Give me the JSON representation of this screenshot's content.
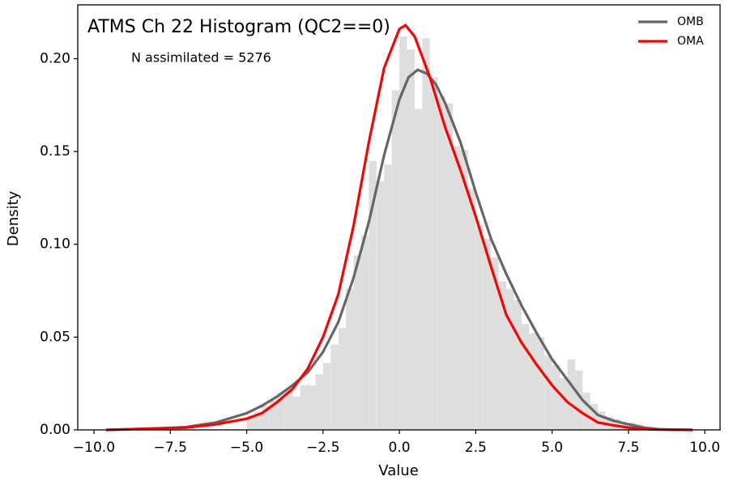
{
  "chart_data": {
    "type": "histogram",
    "title": "ATMS Ch 22 Histogram (QC2==0)",
    "annotation": "N assimilated = 5276",
    "x_label": "Value",
    "y_label": "Density",
    "hist_color": "#dedede",
    "bins": [
      -5,
      -4.75,
      -4.5,
      -4.25,
      -4,
      -3.75,
      -3.5,
      -3.25,
      -3,
      -2.75,
      -2.5,
      -2.25,
      -2,
      -1.75,
      -1.5,
      -1.25,
      -1,
      -0.75,
      -0.5,
      -0.25,
      0,
      0.25,
      0.5,
      0.75,
      1,
      1.25,
      1.5,
      1.75,
      2,
      2.25,
      2.5,
      2.75,
      3,
      3.25,
      3.5,
      3.75,
      4,
      4.25,
      4.5,
      4.75,
      5,
      5.25,
      5.5,
      5.75,
      6,
      6.25,
      6.5,
      6.75,
      7,
      7.25,
      7.5,
      7.75,
      8
    ],
    "values": [
      0.008,
      0.01,
      0.013,
      0.016,
      0.02,
      0.022,
      0.018,
      0.024,
      0.024,
      0.03,
      0.036,
      0.046,
      0.055,
      0.076,
      0.094,
      0.105,
      0.145,
      0.134,
      0.143,
      0.183,
      0.212,
      0.205,
      0.173,
      0.211,
      0.19,
      0.18,
      0.176,
      0.153,
      0.151,
      0.13,
      0.11,
      0.103,
      0.093,
      0.08,
      0.076,
      0.07,
      0.057,
      0.052,
      0.05,
      0.04,
      0.035,
      0.028,
      0.038,
      0.032,
      0.02,
      0.014,
      0.01,
      0.007,
      0.006,
      0.004,
      0.004,
      0.003
    ],
    "series": [
      {
        "name": "OMB",
        "color": "#666666",
        "x": [
          -9.6,
          -9,
          -8,
          -7,
          -6,
          -5,
          -4.5,
          -4,
          -3.5,
          -3,
          -2.5,
          -2,
          -1.5,
          -1,
          -0.5,
          0,
          0.3,
          0.6,
          0.9,
          1.2,
          1.5,
          2,
          2.5,
          3,
          3.5,
          4,
          4.5,
          5,
          5.5,
          6,
          6.5,
          7,
          7.5,
          8,
          8.5,
          9,
          9.6
        ],
        "values": [
          0,
          0.0003,
          0.0008,
          0.0015,
          0.004,
          0.009,
          0.013,
          0.018,
          0.024,
          0.031,
          0.042,
          0.058,
          0.082,
          0.112,
          0.148,
          0.178,
          0.19,
          0.194,
          0.192,
          0.186,
          0.176,
          0.155,
          0.128,
          0.103,
          0.084,
          0.067,
          0.052,
          0.038,
          0.027,
          0.016,
          0.008,
          0.005,
          0.003,
          0.0012,
          0.0004,
          0.0001,
          0
        ]
      },
      {
        "name": "OMA",
        "color": "#ff0000",
        "x": [
          -9.6,
          -9,
          -8,
          -7,
          -6,
          -5,
          -4.5,
          -4,
          -3.5,
          -3,
          -2.5,
          -2,
          -1.5,
          -1,
          -0.5,
          0,
          0.2,
          0.5,
          1,
          1.5,
          2,
          2.5,
          3,
          3.5,
          4,
          4.5,
          5,
          5.5,
          6,
          6.5,
          7,
          7.5,
          8,
          8.5,
          9,
          9.6
        ],
        "values": [
          0,
          0.0003,
          0.0008,
          0.0012,
          0.003,
          0.006,
          0.009,
          0.015,
          0.022,
          0.033,
          0.05,
          0.073,
          0.11,
          0.155,
          0.195,
          0.216,
          0.218,
          0.212,
          0.19,
          0.163,
          0.14,
          0.115,
          0.088,
          0.062,
          0.047,
          0.035,
          0.024,
          0.015,
          0.009,
          0.004,
          0.0025,
          0.0012,
          0.0005,
          0.0002,
          0.0001,
          0
        ]
      }
    ],
    "xlim": [
      -10.53,
      10.5
    ],
    "ylim": [
      0,
      0.229
    ],
    "xticks": [
      {
        "value": -10,
        "label": "−10.0"
      },
      {
        "value": -7.5,
        "label": "−7.5"
      },
      {
        "value": -5,
        "label": "−5.0"
      },
      {
        "value": -2.5,
        "label": "−2.5"
      },
      {
        "value": 0,
        "label": "0.0"
      },
      {
        "value": 2.5,
        "label": "2.5"
      },
      {
        "value": 5,
        "label": "5.0"
      },
      {
        "value": 7.5,
        "label": "7.5"
      },
      {
        "value": 10,
        "label": "10.0"
      }
    ],
    "yticks": [
      {
        "value": 0,
        "label": "0.00"
      },
      {
        "value": 0.05,
        "label": "0.05"
      },
      {
        "value": 0.1,
        "label": "0.10"
      },
      {
        "value": 0.15,
        "label": "0.15"
      },
      {
        "value": 0.2,
        "label": "0.20"
      }
    ],
    "legend": "upper right"
  }
}
